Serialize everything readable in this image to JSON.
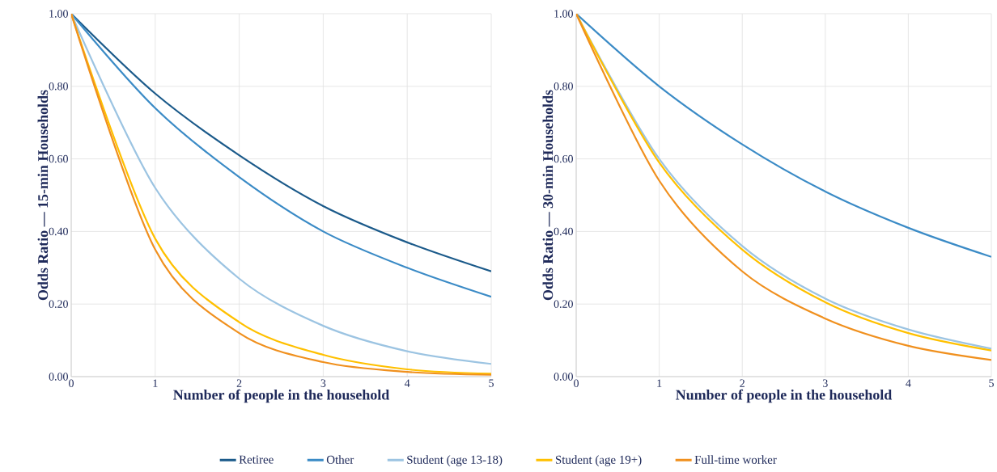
{
  "chart_data": [
    {
      "type": "line",
      "xlabel": "Number of people in the household",
      "ylabel": "Odds Ratio — 15-min Households",
      "x": [
        0,
        1,
        2,
        3,
        4,
        5
      ],
      "xlim": [
        0,
        5
      ],
      "xticks": [
        0,
        1,
        2,
        3,
        4,
        5
      ],
      "ylim": [
        0,
        1
      ],
      "yticks": [
        {
          "value": 0,
          "label": "0.00"
        },
        {
          "value": 0.2,
          "label": "0.20"
        },
        {
          "value": 0.4,
          "label": "0.40"
        },
        {
          "value": 0.6,
          "label": "0.60"
        },
        {
          "value": 0.8,
          "label": "0.80"
        },
        {
          "value": 1,
          "label": "1.00"
        }
      ],
      "grid": true,
      "legend": "bottom",
      "marker": "none",
      "line_style": "solid",
      "series": [
        {
          "name": "Retiree",
          "color": "#1b5a8a",
          "values": [
            1,
            0.78,
            0.61,
            0.47,
            0.37,
            0.29
          ]
        },
        {
          "name": "Other",
          "color": "#3b8bc6",
          "values": [
            1,
            0.74,
            0.55,
            0.4,
            0.3,
            0.22
          ]
        },
        {
          "name": "Student (age 13-18)",
          "color": "#9cc4e2",
          "values": [
            1,
            0.52,
            0.27,
            0.14,
            0.07,
            0.035
          ]
        },
        {
          "name": "Student (age 19+)",
          "color": "#ffc000",
          "values": [
            1,
            0.38,
            0.15,
            0.06,
            0.02,
            0.008
          ]
        },
        {
          "name": "Full-time worker",
          "color": "#f0901e",
          "values": [
            1,
            0.35,
            0.12,
            0.04,
            0.013,
            0.005
          ]
        }
      ]
    },
    {
      "type": "line",
      "xlabel": "Number of people in the household",
      "ylabel": "Odds Ratio — 30-min Households",
      "x": [
        0,
        1,
        2,
        3,
        4,
        5
      ],
      "xlim": [
        0,
        5
      ],
      "xticks": [
        0,
        1,
        2,
        3,
        4,
        5
      ],
      "ylim": [
        0,
        1
      ],
      "yticks": [
        {
          "value": 0,
          "label": "0.00"
        },
        {
          "value": 0.2,
          "label": "0.20"
        },
        {
          "value": 0.4,
          "label": "0.40"
        },
        {
          "value": 0.6,
          "label": "0.60"
        },
        {
          "value": 0.8,
          "label": "0.80"
        },
        {
          "value": 1,
          "label": "1.00"
        }
      ],
      "grid": true,
      "marker": "none",
      "line_style": "solid",
      "series": [
        {
          "color": "#3b8bc6",
          "values": [
            1,
            0.8,
            0.64,
            0.51,
            0.41,
            0.33
          ]
        },
        {
          "color": "#9cc4e2",
          "values": [
            1,
            0.6,
            0.36,
            0.215,
            0.13,
            0.077
          ]
        },
        {
          "color": "#ffc000",
          "values": [
            1,
            0.59,
            0.35,
            0.205,
            0.12,
            0.072
          ]
        },
        {
          "color": "#f0901e",
          "values": [
            1,
            0.54,
            0.29,
            0.16,
            0.085,
            0.046
          ]
        }
      ]
    }
  ]
}
